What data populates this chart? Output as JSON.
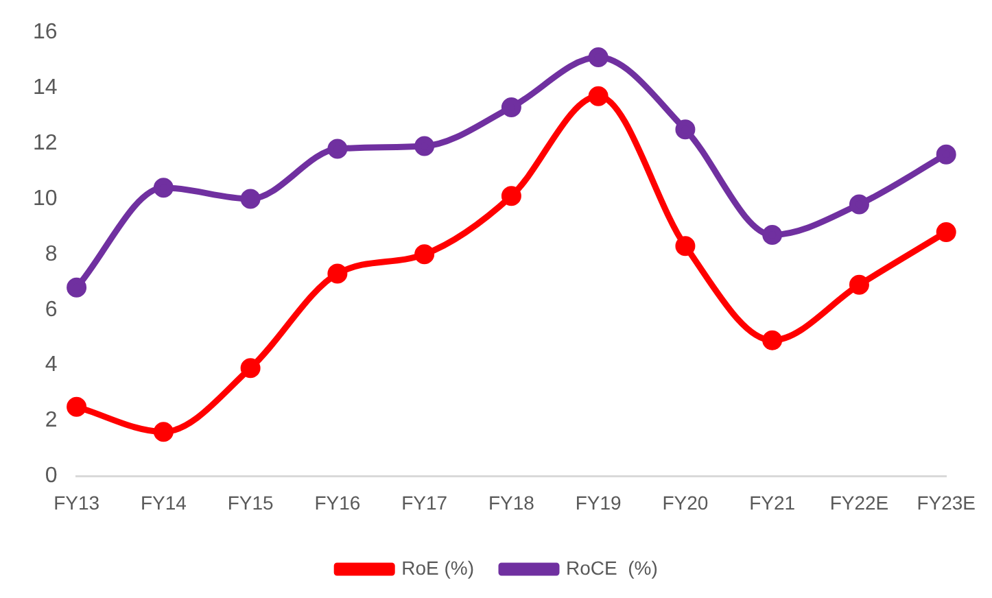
{
  "chart_data": {
    "type": "line",
    "categories": [
      "FY13",
      "FY14",
      "FY15",
      "FY16",
      "FY17",
      "FY18",
      "FY19",
      "FY20",
      "FY21",
      "FY22E",
      "FY23E"
    ],
    "series": [
      {
        "name": "RoE (%)",
        "color": "#ff0000",
        "values": [
          2.5,
          1.6,
          3.9,
          7.3,
          8.0,
          10.1,
          13.7,
          8.3,
          4.9,
          6.9,
          8.8
        ]
      },
      {
        "name": "RoCE  (%)",
        "color": "#7030a0",
        "values": [
          6.8,
          10.4,
          10.0,
          11.8,
          11.9,
          13.3,
          15.1,
          12.5,
          8.7,
          9.8,
          11.6
        ]
      }
    ],
    "ylim": [
      0,
      16
    ],
    "yticks": [
      0,
      2,
      4,
      6,
      8,
      10,
      12,
      14,
      16
    ],
    "grid": false,
    "legend": "bottom",
    "marker": "circle",
    "line_style": "solid"
  }
}
